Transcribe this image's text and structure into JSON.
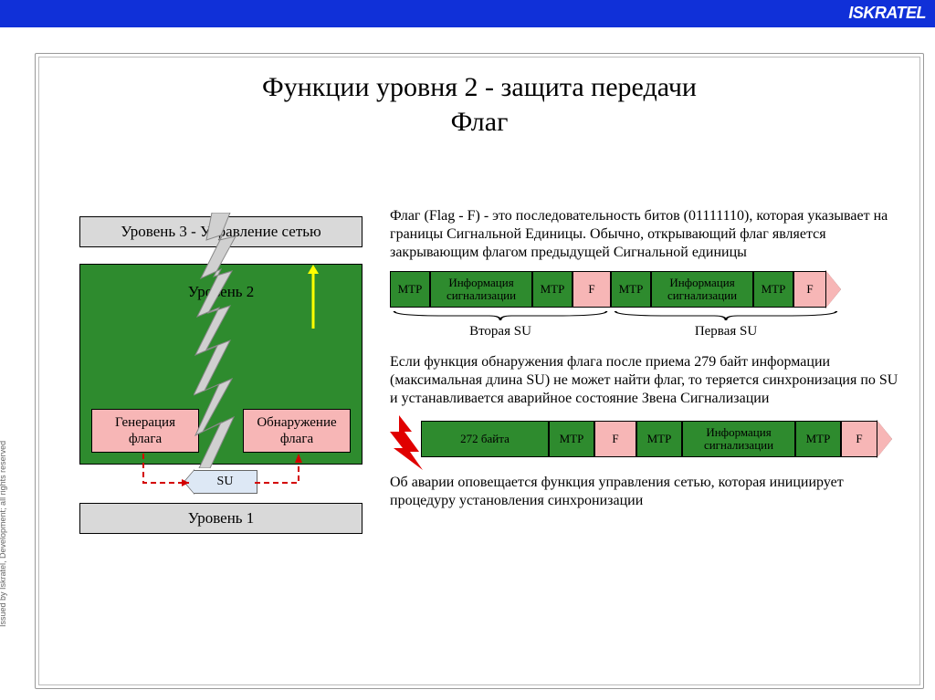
{
  "brand": "ISKRATEL",
  "side_caption": "Issued by Iskratel, Development; all rights reserved",
  "title_line1": "Функции уровня 2 - защита передачи",
  "title_line2": "Флаг",
  "colors": {
    "topbar": "#1030d8",
    "green": "#2e8b2e",
    "pink": "#f7b6b6",
    "grey": "#d9d9d9",
    "su_fill": "#dde8f5"
  },
  "left": {
    "level3": "Уровень 3 - Управление сетью",
    "level2": "Уровень 2",
    "gen": "Генерация флага",
    "det": "Обнаружение флага",
    "su": "SU",
    "level1": "Уровень 1"
  },
  "right": {
    "para1": "Флаг (Flag - F) - это последовательность битов (01111110), которая указывает на границы Сигнальной Единицы. Обычно, открывающий флаг является закрывающим флагом предыдущей Сигнальной единицы",
    "seq1": [
      {
        "text": "MTP",
        "color": "green",
        "w": 44
      },
      {
        "text": "Информация сигнализации",
        "color": "green",
        "w": 112
      },
      {
        "text": "MTP",
        "color": "green",
        "w": 44
      },
      {
        "text": "F",
        "color": "pink",
        "w": 42
      },
      {
        "text": "MTP",
        "color": "green",
        "w": 44
      },
      {
        "text": "Информация сигнализации",
        "color": "green",
        "w": 112
      },
      {
        "text": "MTP",
        "color": "green",
        "w": 44
      },
      {
        "text": "F",
        "color": "pink",
        "w": 36
      }
    ],
    "brace1_left": "Вторая SU",
    "brace1_right": "Первая SU",
    "para2": "Если функция обнаружения флага после приема 279 байт информации (максимальная длина SU) не может найти флаг, то теряется синхронизация по SU и устанавливается аварийное состояние Звена Сигнализации",
    "seq2": [
      {
        "text": "272 байта",
        "color": "green",
        "w": 140
      },
      {
        "text": "MTP",
        "color": "green",
        "w": 50
      },
      {
        "text": "F",
        "color": "pink",
        "w": 46
      },
      {
        "text": "MTP",
        "color": "green",
        "w": 50
      },
      {
        "text": "Информация сигнализации",
        "color": "green",
        "w": 124
      },
      {
        "text": "MTP",
        "color": "green",
        "w": 50
      },
      {
        "text": "F",
        "color": "pink",
        "w": 40
      }
    ],
    "para3": "Об аварии оповещается функция управления сетью, которая инициирует процедуру установления синхронизации"
  }
}
